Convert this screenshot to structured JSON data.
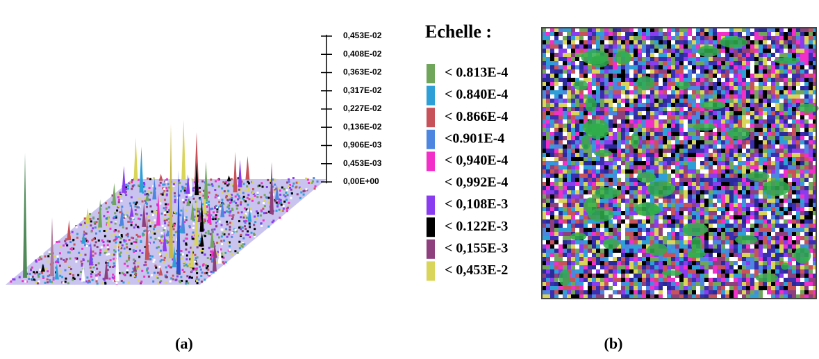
{
  "scale_axis": {
    "ticks": [
      "0,453E-02",
      "0,408E-02",
      "0,363E-02",
      "0,317E-02",
      "0,227E-02",
      "0,136E-02",
      "0,906E-03",
      "0,453E-03",
      "0,00E+00"
    ]
  },
  "legend": {
    "title": "Echelle :",
    "items": [
      {
        "label": "< 0.813E-4",
        "color": "#6fa65c"
      },
      {
        "label": "< 0.840E-4",
        "color": "#2f9fd8"
      },
      {
        "label": "< 0.866E-4",
        "color": "#c8525a"
      },
      {
        "label": "<0.901E-4",
        "color": "#4d86e0"
      },
      {
        "label": "< 0,940E-4",
        "color": "#f22fc9"
      },
      {
        "label": "< 0,992E-4",
        "color": "#ffffff"
      },
      {
        "label": "< 0,108E-3",
        "color": "#8a3cf0"
      },
      {
        "label": "< 0.122E-3",
        "color": "#000000"
      },
      {
        "label": "< 0,155E-3",
        "color": "#8e3f7e"
      },
      {
        "label": "< 0,453E-2",
        "color": "#d9d45a"
      }
    ]
  },
  "captions": {
    "a": "(a)",
    "b": "(b)"
  }
}
